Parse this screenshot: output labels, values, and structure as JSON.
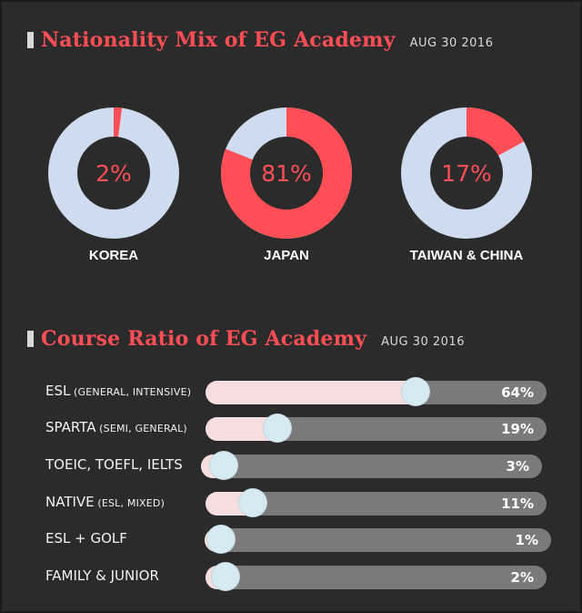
{
  "nationality": {
    "title": "Nationality Mix of EG Academy",
    "date": "AUG 30 2016"
  },
  "course": {
    "title": "Course Ratio of EG Academy",
    "date": "AUG 30 2016"
  },
  "colors": {
    "accent": "#ff4e55",
    "donut_rest": "#cfdcef",
    "bar_fill": "#f6dede",
    "bar_track": "#7a7a7a",
    "knob": "#d6eaf2"
  },
  "chart_data": [
    {
      "type": "pie",
      "title": "Nationality Mix of EG Academy",
      "subtitle": "AUG 30 2016",
      "categories": [
        "KOREA",
        "JAPAN",
        "TAIWAN & CHINA"
      ],
      "values": [
        2,
        81,
        17
      ],
      "value_labels": [
        "2%",
        "81%",
        "17%"
      ]
    },
    {
      "type": "bar",
      "title": "Course Ratio of EG Academy",
      "subtitle": "AUG 30 2016",
      "categories": [
        {
          "main": "ESL",
          "sub": "(GENERAL, INTENSIVE)"
        },
        {
          "main": "SPARTA",
          "sub": "(SEMI, GENERAL)"
        },
        {
          "main": "TOEIC, TOEFL, IELTS",
          "sub": ""
        },
        {
          "main": "NATIVE",
          "sub": "(ESL, MIXED)"
        },
        {
          "main": "ESL + GOLF",
          "sub": ""
        },
        {
          "main": "FAMILY & JUNIOR",
          "sub": ""
        }
      ],
      "values": [
        64,
        19,
        3,
        11,
        1,
        2
      ],
      "value_labels": [
        "64%",
        "19%",
        "3%",
        "11%",
        "1%",
        "2%"
      ],
      "ylim": [
        0,
        100
      ]
    }
  ]
}
